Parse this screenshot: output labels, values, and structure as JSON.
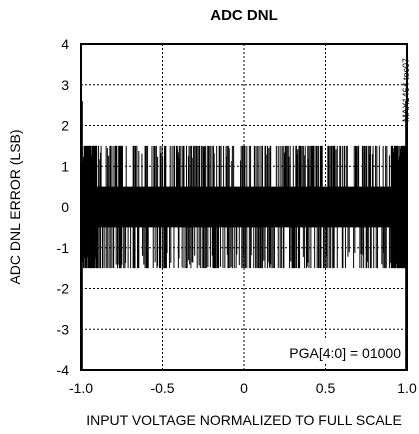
{
  "chart_data": {
    "type": "line",
    "title": "ADC DNL",
    "xlabel": "INPUT VOLTAGE NORMALIZED TO FULL SCALE",
    "ylabel": "ADC DNL ERROR (LSB)",
    "xlim": [
      -1.0,
      1.0
    ],
    "ylim": [
      -4,
      4
    ],
    "x_ticks": [
      -1.0,
      -0.5,
      0,
      0.5,
      1.0
    ],
    "x_tick_labels": [
      "-1.0",
      "-0.5",
      "0",
      "0.5",
      "1.0"
    ],
    "y_ticks": [
      -4,
      -3,
      -2,
      -1,
      0,
      1,
      2,
      3,
      4
    ],
    "y_tick_labels": [
      "-4",
      "-3",
      "-2",
      "-1",
      "0",
      "1",
      "2",
      "3",
      "4"
    ],
    "grid": true,
    "grid_style": "dotted",
    "annotation": "PGA[4:0] = 01000",
    "watermark": "MAX1464 toc07",
    "series": [
      {
        "color": "#000000",
        "description_values": {
          "dense_band": [
            -0.5,
            0.5
          ],
          "spike_extent": [
            -1.5,
            1.5
          ],
          "edge_spike_extent": [
            -4,
            2.6
          ]
        }
      }
    ]
  }
}
